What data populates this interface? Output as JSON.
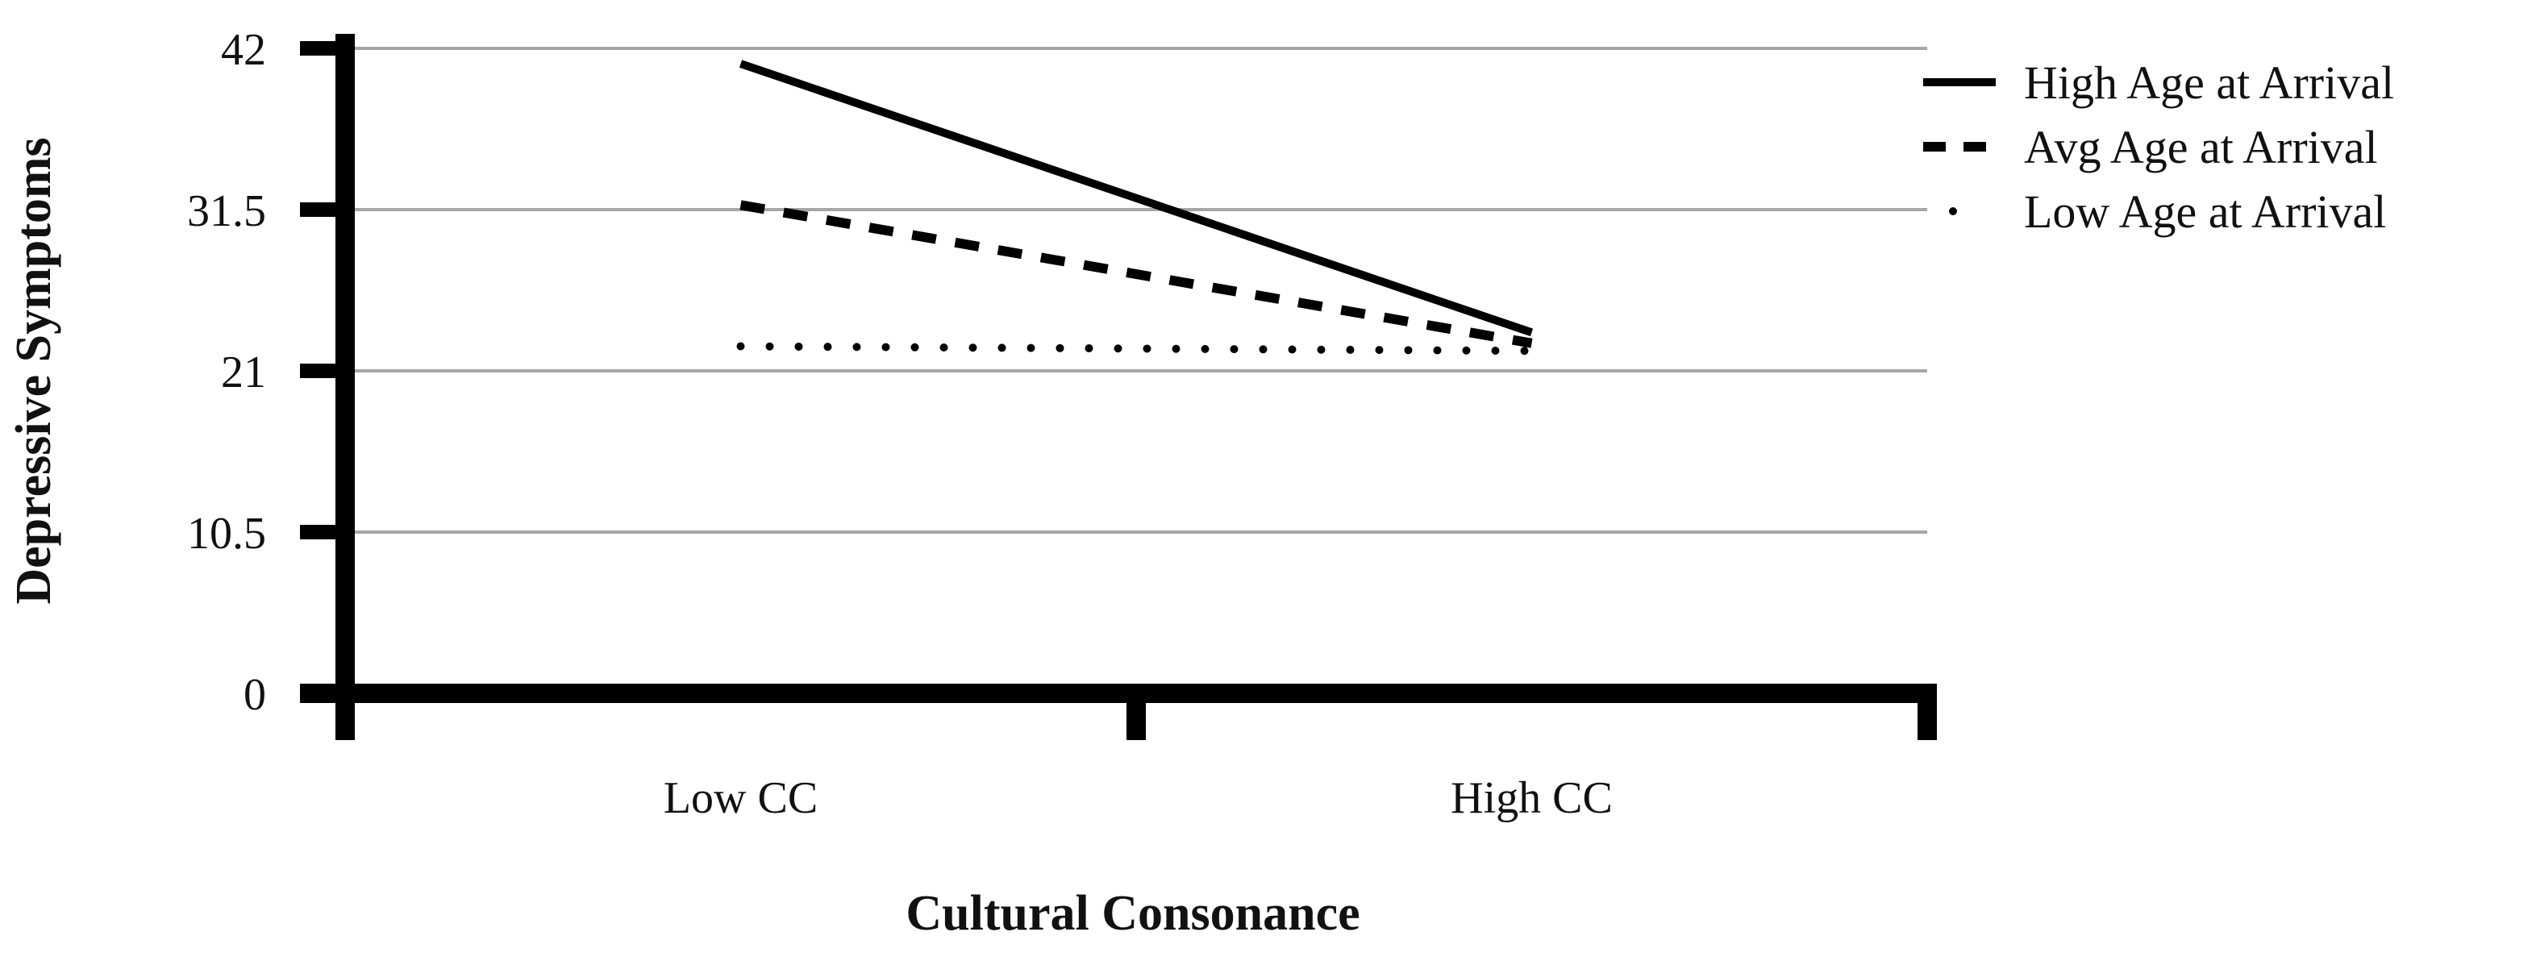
{
  "chart_data": {
    "type": "line",
    "title": "",
    "xlabel": "Cultural Consonance",
    "ylabel": "Depressive Symptoms",
    "categories": [
      "Low CC",
      "High CC"
    ],
    "yticks": [
      "0",
      "10.5",
      "21",
      "31.5",
      "42"
    ],
    "ylim": [
      0,
      42
    ],
    "grid": true,
    "legend_position": "top-right",
    "series": [
      {
        "name": "High Age at Arrival",
        "values": [
          41,
          23.5
        ],
        "style": "solid",
        "color": "#000000"
      },
      {
        "name": "Avg Age at Arrival",
        "values": [
          31.8,
          22.8
        ],
        "style": "dashed",
        "color": "#000000"
      },
      {
        "name": "Low Age at Arrival",
        "values": [
          22.6,
          22.3
        ],
        "style": "dotted",
        "color": "#000000"
      }
    ]
  }
}
